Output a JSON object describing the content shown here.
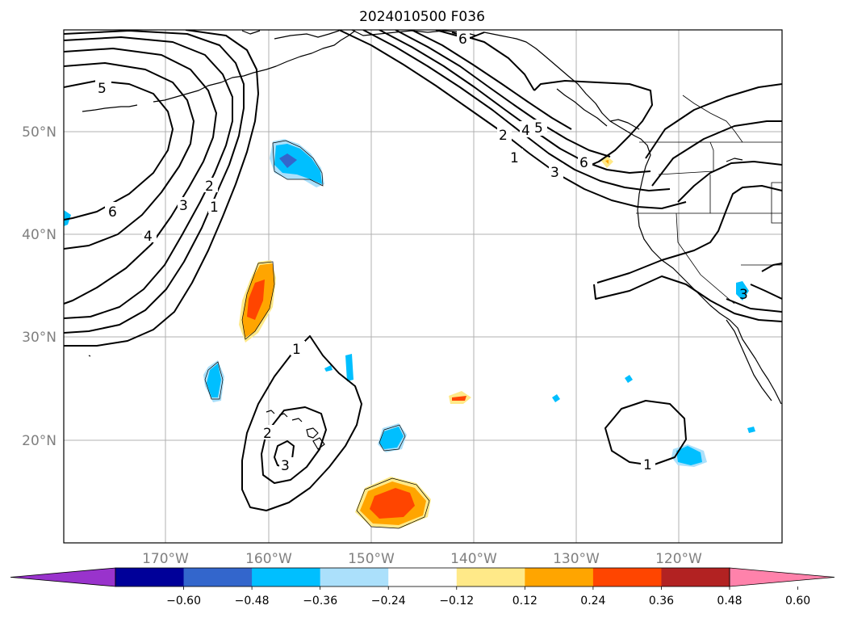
{
  "title": "2024010500 F036",
  "lat_labels": [
    "50°N",
    "40°N",
    "30°N",
    "20°N"
  ],
  "lon_labels": [
    "170°W",
    "160°W",
    "150°W",
    "140°W",
    "130°W",
    "120°W"
  ],
  "colorbar": {
    "ticks": [
      "−0.60",
      "−0.48",
      "−0.36",
      "−0.24",
      "−0.12",
      "0.12",
      "0.24",
      "0.36",
      "0.48",
      "0.60"
    ],
    "colors": [
      "#9933cc",
      "#000099",
      "#3366cc",
      "#00bfff",
      "#abe0fb",
      "#ffffff",
      "#ffe988",
      "#ffa500",
      "#ff4500",
      "#b22222",
      "#ff82ab"
    ],
    "extend": "both"
  },
  "contour_labels": {
    "l5_west": "5",
    "l6_west": "6",
    "l4_west": "4",
    "l3_west": "3",
    "l2_west": "2",
    "l1_west": "1",
    "l6_north": "6",
    "l2_ne": "2",
    "l4_ne": "4",
    "l5_ne": "5",
    "l1_ne": "1",
    "l3_ne": "3",
    "l6_ne": "6",
    "l1_hawaii": "1",
    "l2_hawaii": "2",
    "l3_hawaii": "3",
    "l1_se": "1",
    "l3_east": "3"
  }
}
